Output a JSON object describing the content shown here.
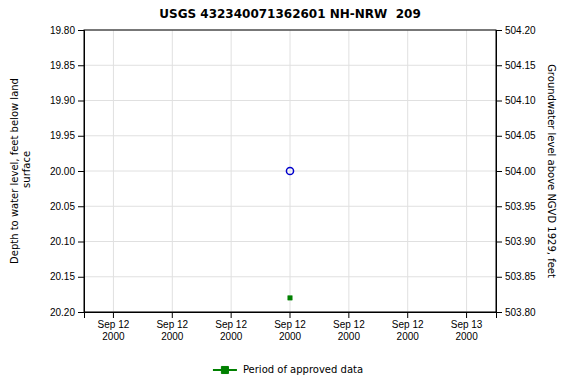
{
  "chart_data": {
    "type": "scatter",
    "title": "USGS 432340071362601 NH-NRW  209",
    "y_label": "Depth to water level, feet below land\n surface",
    "y2_label": "Groundwater level above NGVD 1929, feet",
    "categories": [
      "Sep 12\n2000",
      "Sep 12\n2000",
      "Sep 12\n2000",
      "Sep 12\n2000",
      "Sep 12\n2000",
      "Sep 12\n2000",
      "Sep 13\n2000"
    ],
    "series": [
      {
        "color": "#0000cc",
        "marker": "open-circle",
        "values": [
          null,
          null,
          null,
          20.0,
          null,
          null,
          null
        ]
      },
      {
        "name": "Period of approved data",
        "color": "#008000",
        "marker": "square",
        "values": [
          null,
          null,
          null,
          20.18,
          null,
          null,
          null
        ]
      }
    ],
    "ylim": [
      20.2,
      19.8
    ],
    "yticks": [
      {
        "value": 19.8,
        "label": "19.80"
      },
      {
        "value": 19.85,
        "label": "19.85"
      },
      {
        "value": 19.9,
        "label": "19.90"
      },
      {
        "value": 19.95,
        "label": "19.95"
      },
      {
        "value": 20.0,
        "label": "20.00"
      },
      {
        "value": 20.05,
        "label": "20.05"
      },
      {
        "value": 20.1,
        "label": "20.10"
      },
      {
        "value": 20.15,
        "label": "20.15"
      },
      {
        "value": 20.2,
        "label": "20.20"
      }
    ],
    "y2lim": [
      503.8,
      504.2
    ],
    "y2ticks": [
      {
        "value": 504.2,
        "label": "504.20"
      },
      {
        "value": 504.15,
        "label": "504.15"
      },
      {
        "value": 504.1,
        "label": "504.10"
      },
      {
        "value": 504.05,
        "label": "504.05"
      },
      {
        "value": 504.0,
        "label": "504.00"
      },
      {
        "value": 503.95,
        "label": "503.95"
      },
      {
        "value": 503.9,
        "label": "503.90"
      },
      {
        "value": 503.85,
        "label": "503.85"
      },
      {
        "value": 503.8,
        "label": "503.80"
      }
    ],
    "grid": true,
    "legend": "bottom"
  }
}
